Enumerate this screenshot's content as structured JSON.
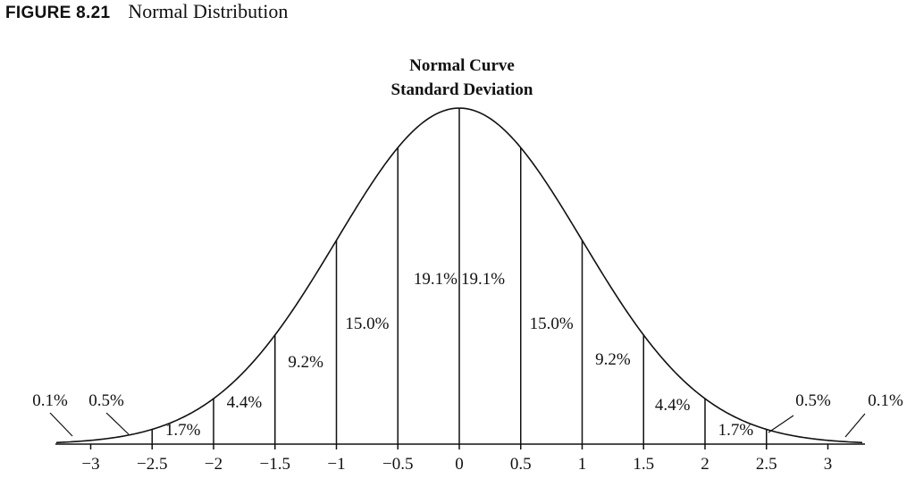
{
  "figure": {
    "label": "FIGURE 8.21",
    "caption": "Normal Distribution"
  },
  "chart_data": {
    "type": "area",
    "title": "Normal Curve",
    "subtitle": "Standard Deviation",
    "xlabel": "",
    "ylabel": "",
    "xlim": [
      -3.3,
      3.3
    ],
    "grid": false,
    "x_ticks": [
      {
        "value": -3,
        "label": "−3"
      },
      {
        "value": -2.5,
        "label": "−2.5"
      },
      {
        "value": -2,
        "label": "−2"
      },
      {
        "value": -1.5,
        "label": "−1.5"
      },
      {
        "value": -1,
        "label": "−1"
      },
      {
        "value": -0.5,
        "label": "−0.5"
      },
      {
        "value": 0,
        "label": "0"
      },
      {
        "value": 0.5,
        "label": "0.5"
      },
      {
        "value": 1,
        "label": "1"
      },
      {
        "value": 1.5,
        "label": "1.5"
      },
      {
        "value": 2,
        "label": "2"
      },
      {
        "value": 2.5,
        "label": "2.5"
      },
      {
        "value": 3,
        "label": "3"
      }
    ],
    "boundaries": [
      -2.5,
      -2,
      -1.5,
      -1,
      -0.5,
      0,
      0.5,
      1,
      1.5,
      2,
      2.5
    ],
    "segments": [
      {
        "from": -3.3,
        "to": -3,
        "value": 0.1,
        "label": "0.1%"
      },
      {
        "from": -3,
        "to": -2.5,
        "value": 0.5,
        "label": "0.5%"
      },
      {
        "from": -2.5,
        "to": -2,
        "value": 1.7,
        "label": "1.7%"
      },
      {
        "from": -2,
        "to": -1.5,
        "value": 4.4,
        "label": "4.4%"
      },
      {
        "from": -1.5,
        "to": -1,
        "value": 9.2,
        "label": "9.2%"
      },
      {
        "from": -1,
        "to": -0.5,
        "value": 15.0,
        "label": "15.0%"
      },
      {
        "from": -0.5,
        "to": 0,
        "value": 19.1,
        "label": "19.1%"
      },
      {
        "from": 0,
        "to": 0.5,
        "value": 19.1,
        "label": "19.1%"
      },
      {
        "from": 0.5,
        "to": 1,
        "value": 15.0,
        "label": "15.0%"
      },
      {
        "from": 1,
        "to": 1.5,
        "value": 9.2,
        "label": "9.2%"
      },
      {
        "from": 1.5,
        "to": 2,
        "value": 4.4,
        "label": "4.4%"
      },
      {
        "from": 2,
        "to": 2.5,
        "value": 1.7,
        "label": "1.7%"
      },
      {
        "from": 2.5,
        "to": 3,
        "value": 0.5,
        "label": "0.5%"
      },
      {
        "from": 3,
        "to": 3.3,
        "value": 0.1,
        "label": "0.1%"
      }
    ]
  }
}
